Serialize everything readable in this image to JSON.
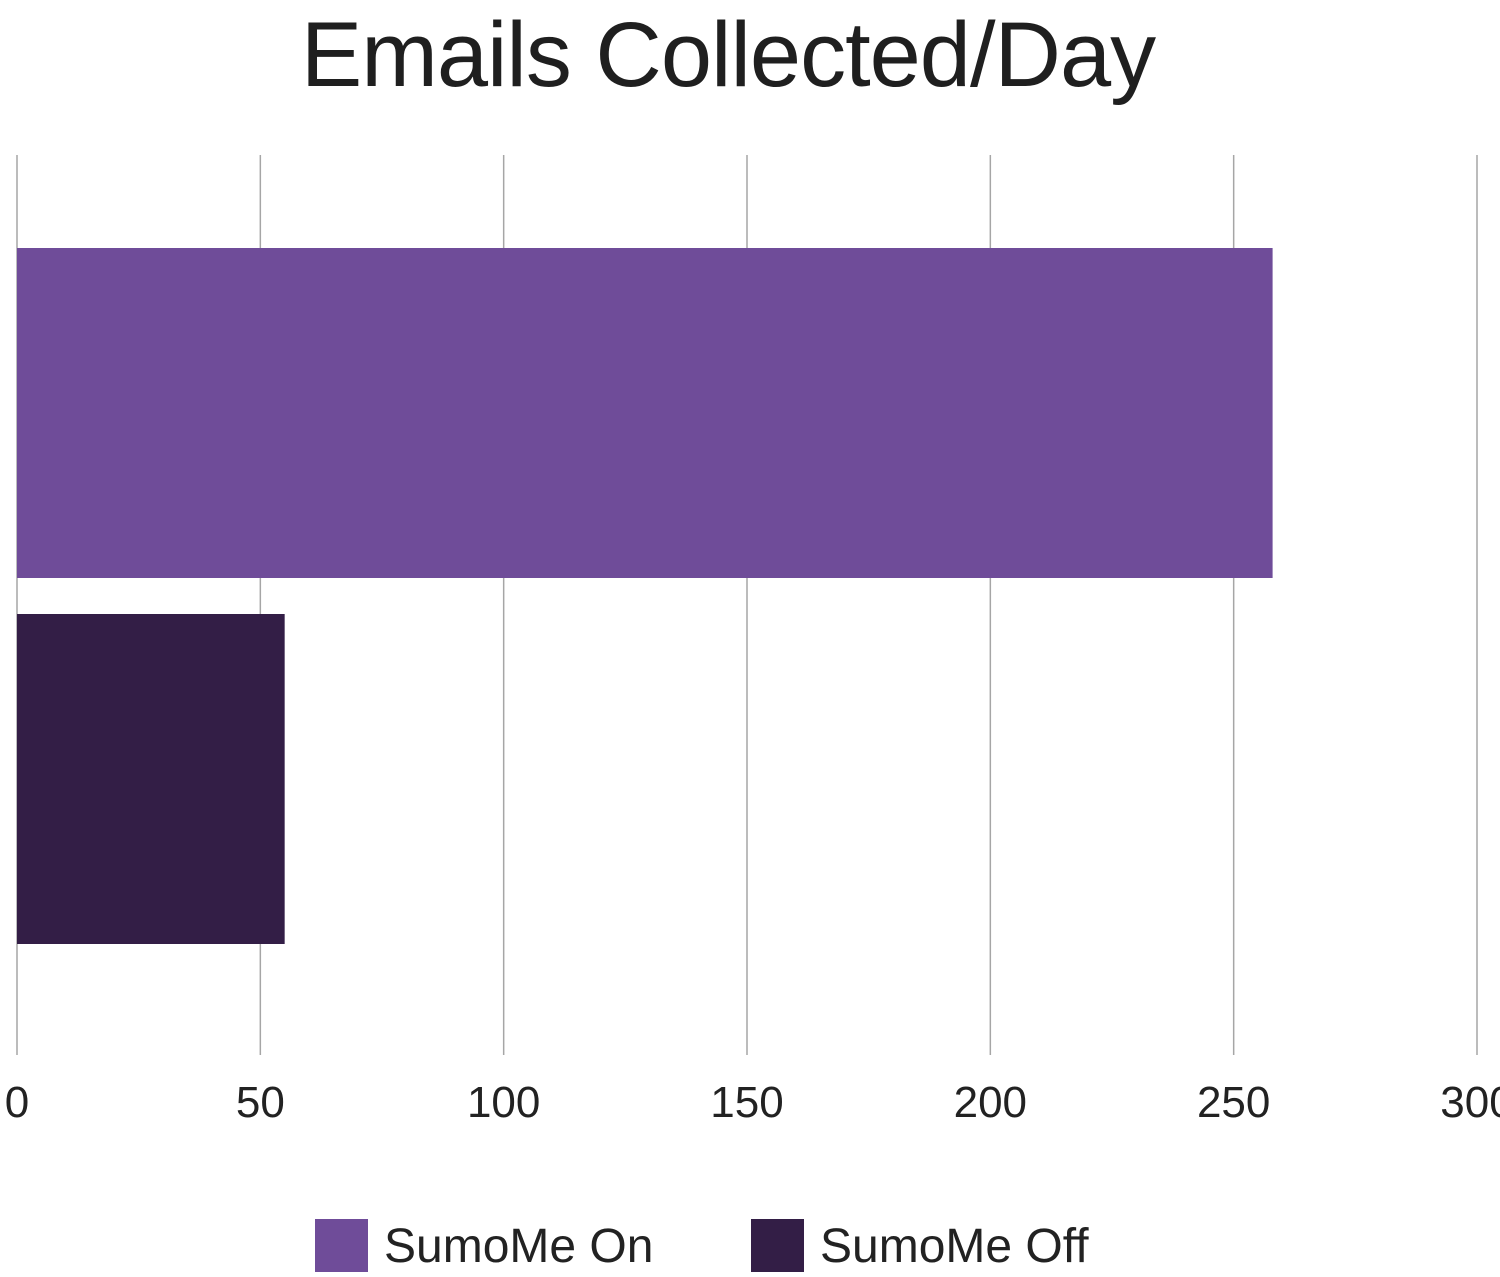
{
  "chart_data": {
    "type": "bar",
    "orientation": "horizontal",
    "title": "Emails Collected/Day",
    "xlabel": "",
    "ylabel": "",
    "xlim": [
      0,
      300
    ],
    "x_ticks": [
      "0",
      "50",
      "100",
      "150",
      "200",
      "250",
      "300"
    ],
    "grid": true,
    "legend_position": "bottom",
    "series": [
      {
        "name": "SumoMe On",
        "value": 258,
        "color": "#6f4c99"
      },
      {
        "name": "SumoMe Off",
        "value": 55,
        "color": "#331e46"
      }
    ]
  }
}
